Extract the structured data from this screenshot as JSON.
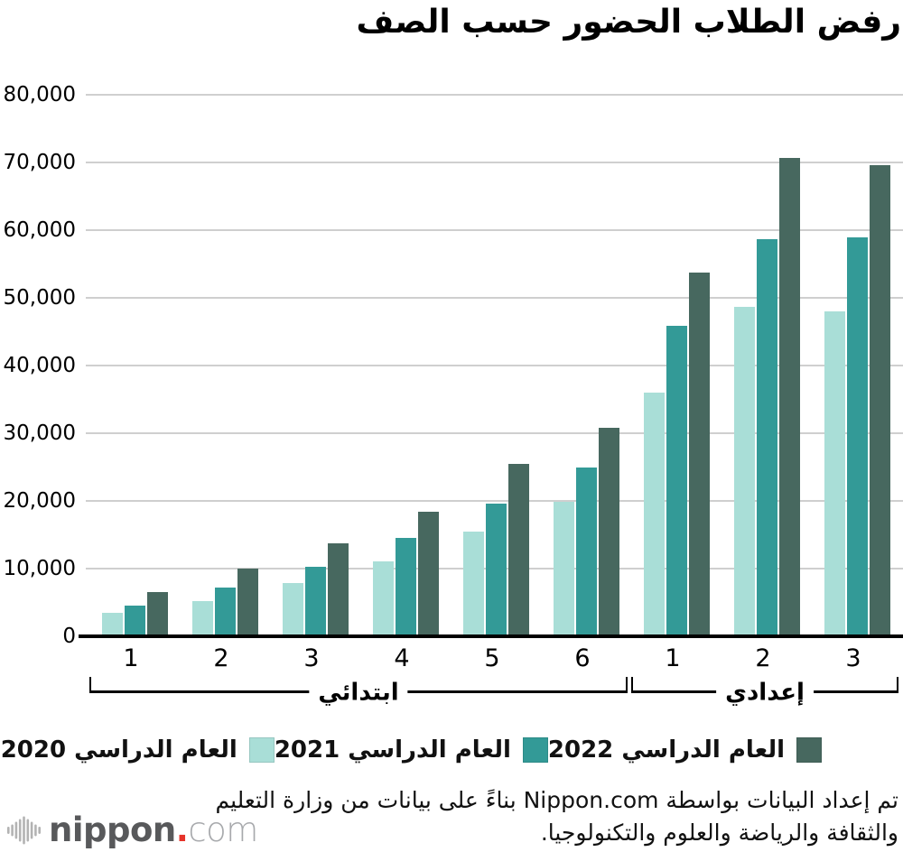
{
  "title": "رفض الطلاب الحضور حسب الصف",
  "chart_data": {
    "type": "bar",
    "title": "رفض الطلاب الحضور حسب الصف",
    "categories": [
      "1",
      "2",
      "3",
      "4",
      "5",
      "6",
      "1",
      "2",
      "3"
    ],
    "section_brackets": [
      {
        "label": "ابتدائي",
        "from_index": 0,
        "to_index": 5
      },
      {
        "label": "إعدادي",
        "from_index": 6,
        "to_index": 8
      }
    ],
    "series": [
      {
        "name": "العام الدراسي 2020",
        "color": "#a9ded7",
        "values": [
          3400,
          5200,
          7900,
          11100,
          15500,
          19900,
          36000,
          48700,
          48000
        ]
      },
      {
        "name": "العام الدراسي 2021",
        "color": "#339a97",
        "values": [
          4500,
          7200,
          10200,
          14500,
          19600,
          24900,
          45800,
          58700,
          58900
        ]
      },
      {
        "name": "العام الدراسي 2022",
        "color": "#47685f",
        "values": [
          6500,
          10000,
          13700,
          18400,
          25400,
          30800,
          53700,
          70600,
          69600
        ]
      }
    ],
    "ylim": [
      0,
      80000
    ],
    "ytick_step": 10000,
    "yticks": [
      {
        "value": 0,
        "label": "0"
      },
      {
        "value": 10000,
        "label": "10,000"
      },
      {
        "value": 20000,
        "label": "20,000"
      },
      {
        "value": 30000,
        "label": "30,000"
      },
      {
        "value": 40000,
        "label": "40,000"
      },
      {
        "value": 50000,
        "label": "50,000"
      },
      {
        "value": 60000,
        "label": "60,000"
      },
      {
        "value": 70000,
        "label": "70,000"
      },
      {
        "value": 80000,
        "label": "80,000"
      }
    ],
    "grid": "horizontal",
    "legend_position": "bottom",
    "legend_order_right_to_left": [
      "العام الدراسي 2022",
      "العام الدراسي 2021",
      "العام الدراسي 2020"
    ]
  },
  "footer": {
    "line1": "تم إعداد البيانات بواسطة Nippon.com بناءً على بيانات من وزارة التعليم",
    "line2": "والثقافة والرياضة والعلوم والتكنولوجيا."
  },
  "logo": {
    "waveform_icon": "audio-waveform-icon",
    "brand_bold": "nippon",
    "dot": ".",
    "brand_light": "com",
    "dot_color": "#e6332a",
    "icon_color": "#b3b3b3"
  }
}
